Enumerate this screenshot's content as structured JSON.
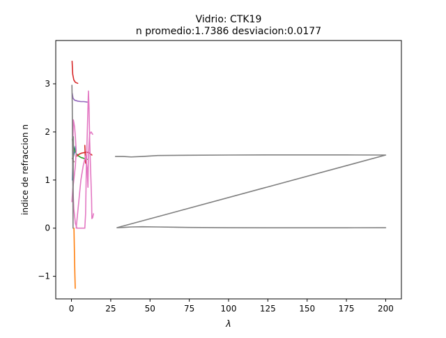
{
  "chart_data": {
    "type": "line",
    "title": "Vidrio: CTK19",
    "subtitle": "n promedio:1.7386 desviacion:0.0177",
    "xlabel": "λ",
    "ylabel": "indice de refraccion n",
    "xlim": [
      -10,
      210
    ],
    "ylim": [
      -1.47,
      3.9
    ],
    "xticks": [
      0,
      25,
      50,
      75,
      100,
      125,
      150,
      175,
      200
    ],
    "yticks": [
      -1,
      0,
      1,
      2,
      3
    ],
    "ytick_labels": [
      "−1",
      "0",
      "1",
      "2",
      "3"
    ],
    "grid": false,
    "legend": "none",
    "series": [
      {
        "color": "#1f77b4",
        "points": [
          [
            0.6,
            1.0
          ],
          [
            0.8,
            1.3
          ],
          [
            1.0,
            1.45
          ],
          [
            1.3,
            1.5
          ],
          [
            1.7,
            1.55
          ],
          [
            2.2,
            1.6
          ],
          [
            2.6,
            1.7
          ]
        ]
      },
      {
        "color": "#ff7f0e",
        "points": [
          [
            1.6,
            0.0
          ],
          [
            1.8,
            -0.35
          ],
          [
            2.0,
            -0.7
          ],
          [
            2.2,
            -1.0
          ],
          [
            2.4,
            -1.25
          ]
        ]
      },
      {
        "color": "#2ca02c",
        "points": [
          [
            0.5,
            1.85
          ],
          [
            1.0,
            1.75
          ],
          [
            2.0,
            1.62
          ],
          [
            3.0,
            1.55
          ],
          [
            4.5,
            1.5
          ],
          [
            6.0,
            1.47
          ],
          [
            8.0,
            1.45
          ],
          [
            10.0,
            1.43
          ]
        ]
      },
      {
        "color": "#d62728",
        "points": [
          [
            0.4,
            3.47
          ],
          [
            0.8,
            3.2
          ],
          [
            1.5,
            3.08
          ],
          [
            2.5,
            3.03
          ],
          [
            4.0,
            3.01
          ]
        ]
      },
      {
        "color": "#d62728",
        "points": [
          [
            3.5,
            1.5
          ],
          [
            5.0,
            1.54
          ],
          [
            6.5,
            1.56
          ],
          [
            8.0,
            1.57
          ],
          [
            9.5,
            1.58
          ],
          [
            11.0,
            1.57
          ],
          [
            13.0,
            1.52
          ]
        ]
      },
      {
        "color": "#d62728",
        "points": [
          [
            8.5,
            1.72
          ],
          [
            8.8,
            1.5
          ],
          [
            9.0,
            1.35
          ]
        ]
      },
      {
        "color": "#9467bd",
        "points": [
          [
            0.5,
            2.8
          ],
          [
            1.0,
            2.7
          ],
          [
            2.0,
            2.66
          ],
          [
            4.0,
            2.64
          ],
          [
            6.0,
            2.63
          ],
          [
            8.0,
            2.63
          ],
          [
            10.0,
            2.62
          ]
        ]
      },
      {
        "color": "#8c564b",
        "points": [
          [
            0.5,
            1.45
          ],
          [
            0.8,
            1.43
          ],
          [
            1.2,
            1.4
          ],
          [
            1.6,
            1.38
          ]
        ]
      },
      {
        "color": "#e377c2",
        "points": [
          [
            0.3,
            0.55
          ],
          [
            0.8,
            0.8
          ],
          [
            1.5,
            1.0
          ],
          [
            2.5,
            1.3
          ],
          [
            3.0,
            1.6
          ],
          [
            2.5,
            1.9
          ],
          [
            2.0,
            2.1
          ],
          [
            1.5,
            2.2
          ],
          [
            1.2,
            2.25
          ],
          [
            1.0,
            1.9
          ],
          [
            0.9,
            1.3
          ],
          [
            1.0,
            0.8
          ],
          [
            1.5,
            0.4
          ],
          [
            2.5,
            0.1
          ],
          [
            3.5,
            0.0
          ],
          [
            5.5,
            0.0
          ],
          [
            7.0,
            0.0
          ],
          [
            8.5,
            0.0
          ]
        ]
      },
      {
        "color": "#e377c2",
        "points": [
          [
            8.5,
            0.0
          ],
          [
            9.0,
            0.3
          ],
          [
            9.5,
            1.3
          ],
          [
            10.0,
            1.9
          ],
          [
            10.5,
            2.5
          ],
          [
            10.8,
            2.85
          ],
          [
            11.2,
            2.5
          ],
          [
            11.6,
            1.8
          ],
          [
            12.2,
            1.2
          ],
          [
            12.8,
            0.6
          ],
          [
            13.0,
            0.2
          ],
          [
            13.5,
            0.22
          ],
          [
            14.0,
            0.3
          ]
        ]
      },
      {
        "color": "#e377c2",
        "points": [
          [
            3.0,
            0.0
          ],
          [
            4.5,
            0.5
          ],
          [
            6.0,
            1.0
          ],
          [
            7.5,
            1.3
          ],
          [
            9.0,
            1.5
          ],
          [
            10.0,
            1.25
          ],
          [
            10.5,
            0.85
          ],
          [
            10.8,
            1.5
          ],
          [
            11.5,
            1.95
          ],
          [
            12.5,
            2.0
          ],
          [
            13.5,
            1.95
          ]
        ]
      },
      {
        "color": "#7f7f7f",
        "points": [
          [
            0.3,
            2.97
          ],
          [
            0.5,
            2.6
          ],
          [
            0.7,
            1.6
          ],
          [
            0.9,
            0.9
          ],
          [
            1.0,
            0.0
          ],
          [
            1.2,
            1.9
          ],
          [
            1.4,
            1.5
          ]
        ]
      },
      {
        "color": "#7f7f7f",
        "points": [
          [
            28,
            1.49
          ],
          [
            33,
            1.49
          ],
          [
            38,
            1.48
          ],
          [
            45,
            1.49
          ],
          [
            55,
            1.51
          ],
          [
            75,
            1.515
          ],
          [
            100,
            1.52
          ],
          [
            125,
            1.523
          ],
          [
            150,
            1.523
          ],
          [
            175,
            1.522
          ],
          [
            200,
            1.52
          ],
          [
            29,
            0.01
          ],
          [
            33,
            0.015
          ],
          [
            38,
            0.025
          ],
          [
            45,
            0.03
          ],
          [
            55,
            0.025
          ],
          [
            75,
            0.015
          ],
          [
            100,
            0.01
          ],
          [
            125,
            0.008
          ],
          [
            150,
            0.007
          ],
          [
            175,
            0.008
          ],
          [
            200,
            0.01
          ]
        ]
      }
    ]
  }
}
